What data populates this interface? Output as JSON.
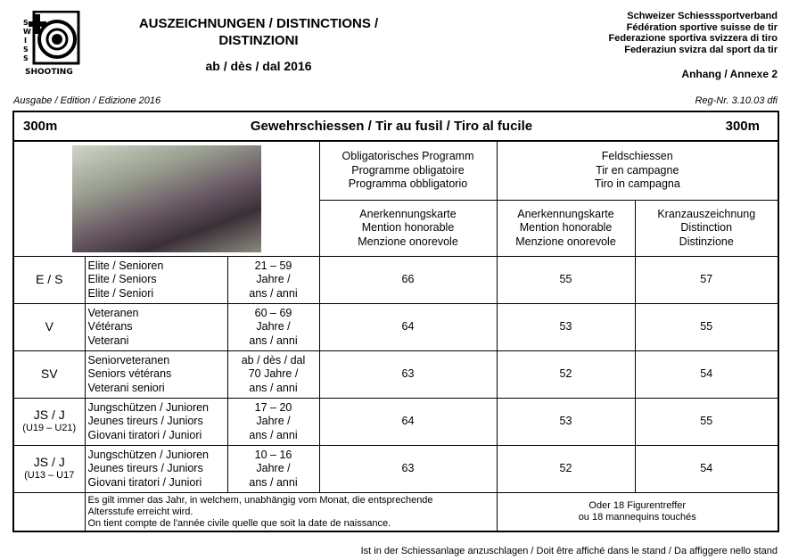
{
  "header": {
    "logo_text": "SWISS SHOOTING",
    "title_line1": "AUSZEICHNUNGEN / DISTINCTIONS /",
    "title_line2": "DISTINZIONI",
    "since": "ab / dès / dal 2016",
    "org": [
      "Schweizer Schiesssportverband",
      "Fédération sportive suisse de tir",
      "Federazione sportiva svizzera di tiro",
      "Federaziun svizra dal sport da tir"
    ],
    "annex": "Anhang / Annexe 2",
    "edition": "Ausgabe / Edition / Edizione 2016",
    "reg": "Reg-Nr. 3.10.03 dfi"
  },
  "table": {
    "distance_left": "300m",
    "title": "Gewehrschiessen / Tir au fusil / Tiro al fucile",
    "distance_right": "300m",
    "obligatory": "Obligatorisches Programm\nProgramme obligatoire\nProgramma obbligatorio",
    "field": "Feldschiessen\nTir en campagne\nTiro in campagna",
    "col_mention": "Anerkennungskarte\nMention honorable\nMenzione onorevole",
    "col_kranz": "Kranzauszeichnung\nDistinction\nDistinzione",
    "rows": [
      {
        "code": "E / S",
        "sub": "",
        "cat": "Elite / Senioren\nElite / Seniors\nElite / Seniori",
        "age": "21 – 59\nJahre /\nans / anni",
        "op": "66",
        "fm": "55",
        "fk": "57"
      },
      {
        "code": "V",
        "sub": "",
        "cat": "Veteranen\nVétérans\nVeterani",
        "age": "60 – 69\nJahre /\nans / anni",
        "op": "64",
        "fm": "53",
        "fk": "55"
      },
      {
        "code": "SV",
        "sub": "",
        "cat": "Seniorveteranen\nSeniors vétérans\nVeterani seniori",
        "age": "ab / dès / dal\n70 Jahre /\nans / anni",
        "op": "63",
        "fm": "52",
        "fk": "54"
      },
      {
        "code": "JS / J",
        "sub": "(U19 – U21)",
        "cat": "Jungschützen / Junioren\nJeunes tireurs / Juniors\nGiovani tiratori / Juniori",
        "age": "17 – 20\nJahre /\nans / anni",
        "op": "64",
        "fm": "53",
        "fk": "55"
      },
      {
        "code": "JS / J",
        "sub": "(U13 – U17",
        "cat": "Jungschützen / Junioren\nJeunes tireurs / Juniors\nGiovani tiratori / Juniori",
        "age": "10 – 16\nJahre /\nans / anni",
        "op": "63",
        "fm": "52",
        "fk": "54"
      }
    ],
    "note": "Es gilt immer das Jahr, in welchem, unabhängig vom Monat, die entsprechende\nAltersstufe erreicht wird.\nOn tient compte de l'année civile quelle que soit la date de naissance.",
    "figures": "Oder 18 Figurentreffer\nou 18 mannequins touchés"
  },
  "footer": "Ist in der Schiessanlage anzuschlagen / Doit être affiché dans le stand / Da affiggere nello stand"
}
